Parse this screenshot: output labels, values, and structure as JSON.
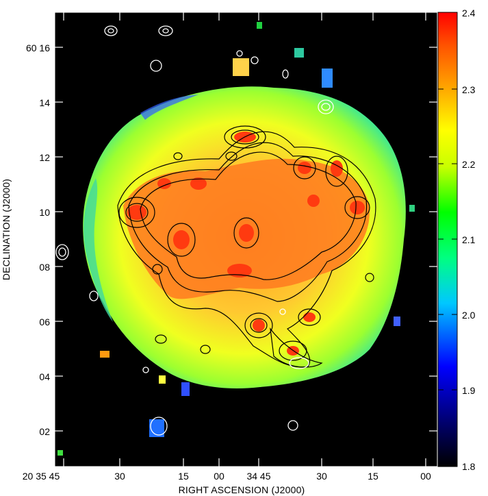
{
  "image": {
    "xlabel": "RIGHT ASCENSION (J2000)",
    "ylabel": "DECLINATION (J2000)",
    "dec_ticks": [
      "60 16",
      "14",
      "12",
      "10",
      "08",
      "06",
      "04",
      "02"
    ],
    "ra_ticks": [
      "20 35 45",
      "30",
      "15",
      "00",
      "34 45",
      "30",
      "15",
      "00"
    ],
    "colorbar_ticks": [
      "2.4",
      "2.3",
      "2.2",
      "2.1",
      "2.0",
      "1.9",
      "1.8"
    ],
    "colors": {
      "background": "#000000",
      "frame": "#ffffff",
      "contour_inner": "#000000",
      "contour_outer": "#ffffff",
      "colormap": [
        "#000000",
        "#00008a",
        "#0000ff",
        "#00c8ff",
        "#00ff64",
        "#00ff00",
        "#c8ff00",
        "#ffff00",
        "#ffb400",
        "#ff6400",
        "#ff0000"
      ]
    }
  }
}
